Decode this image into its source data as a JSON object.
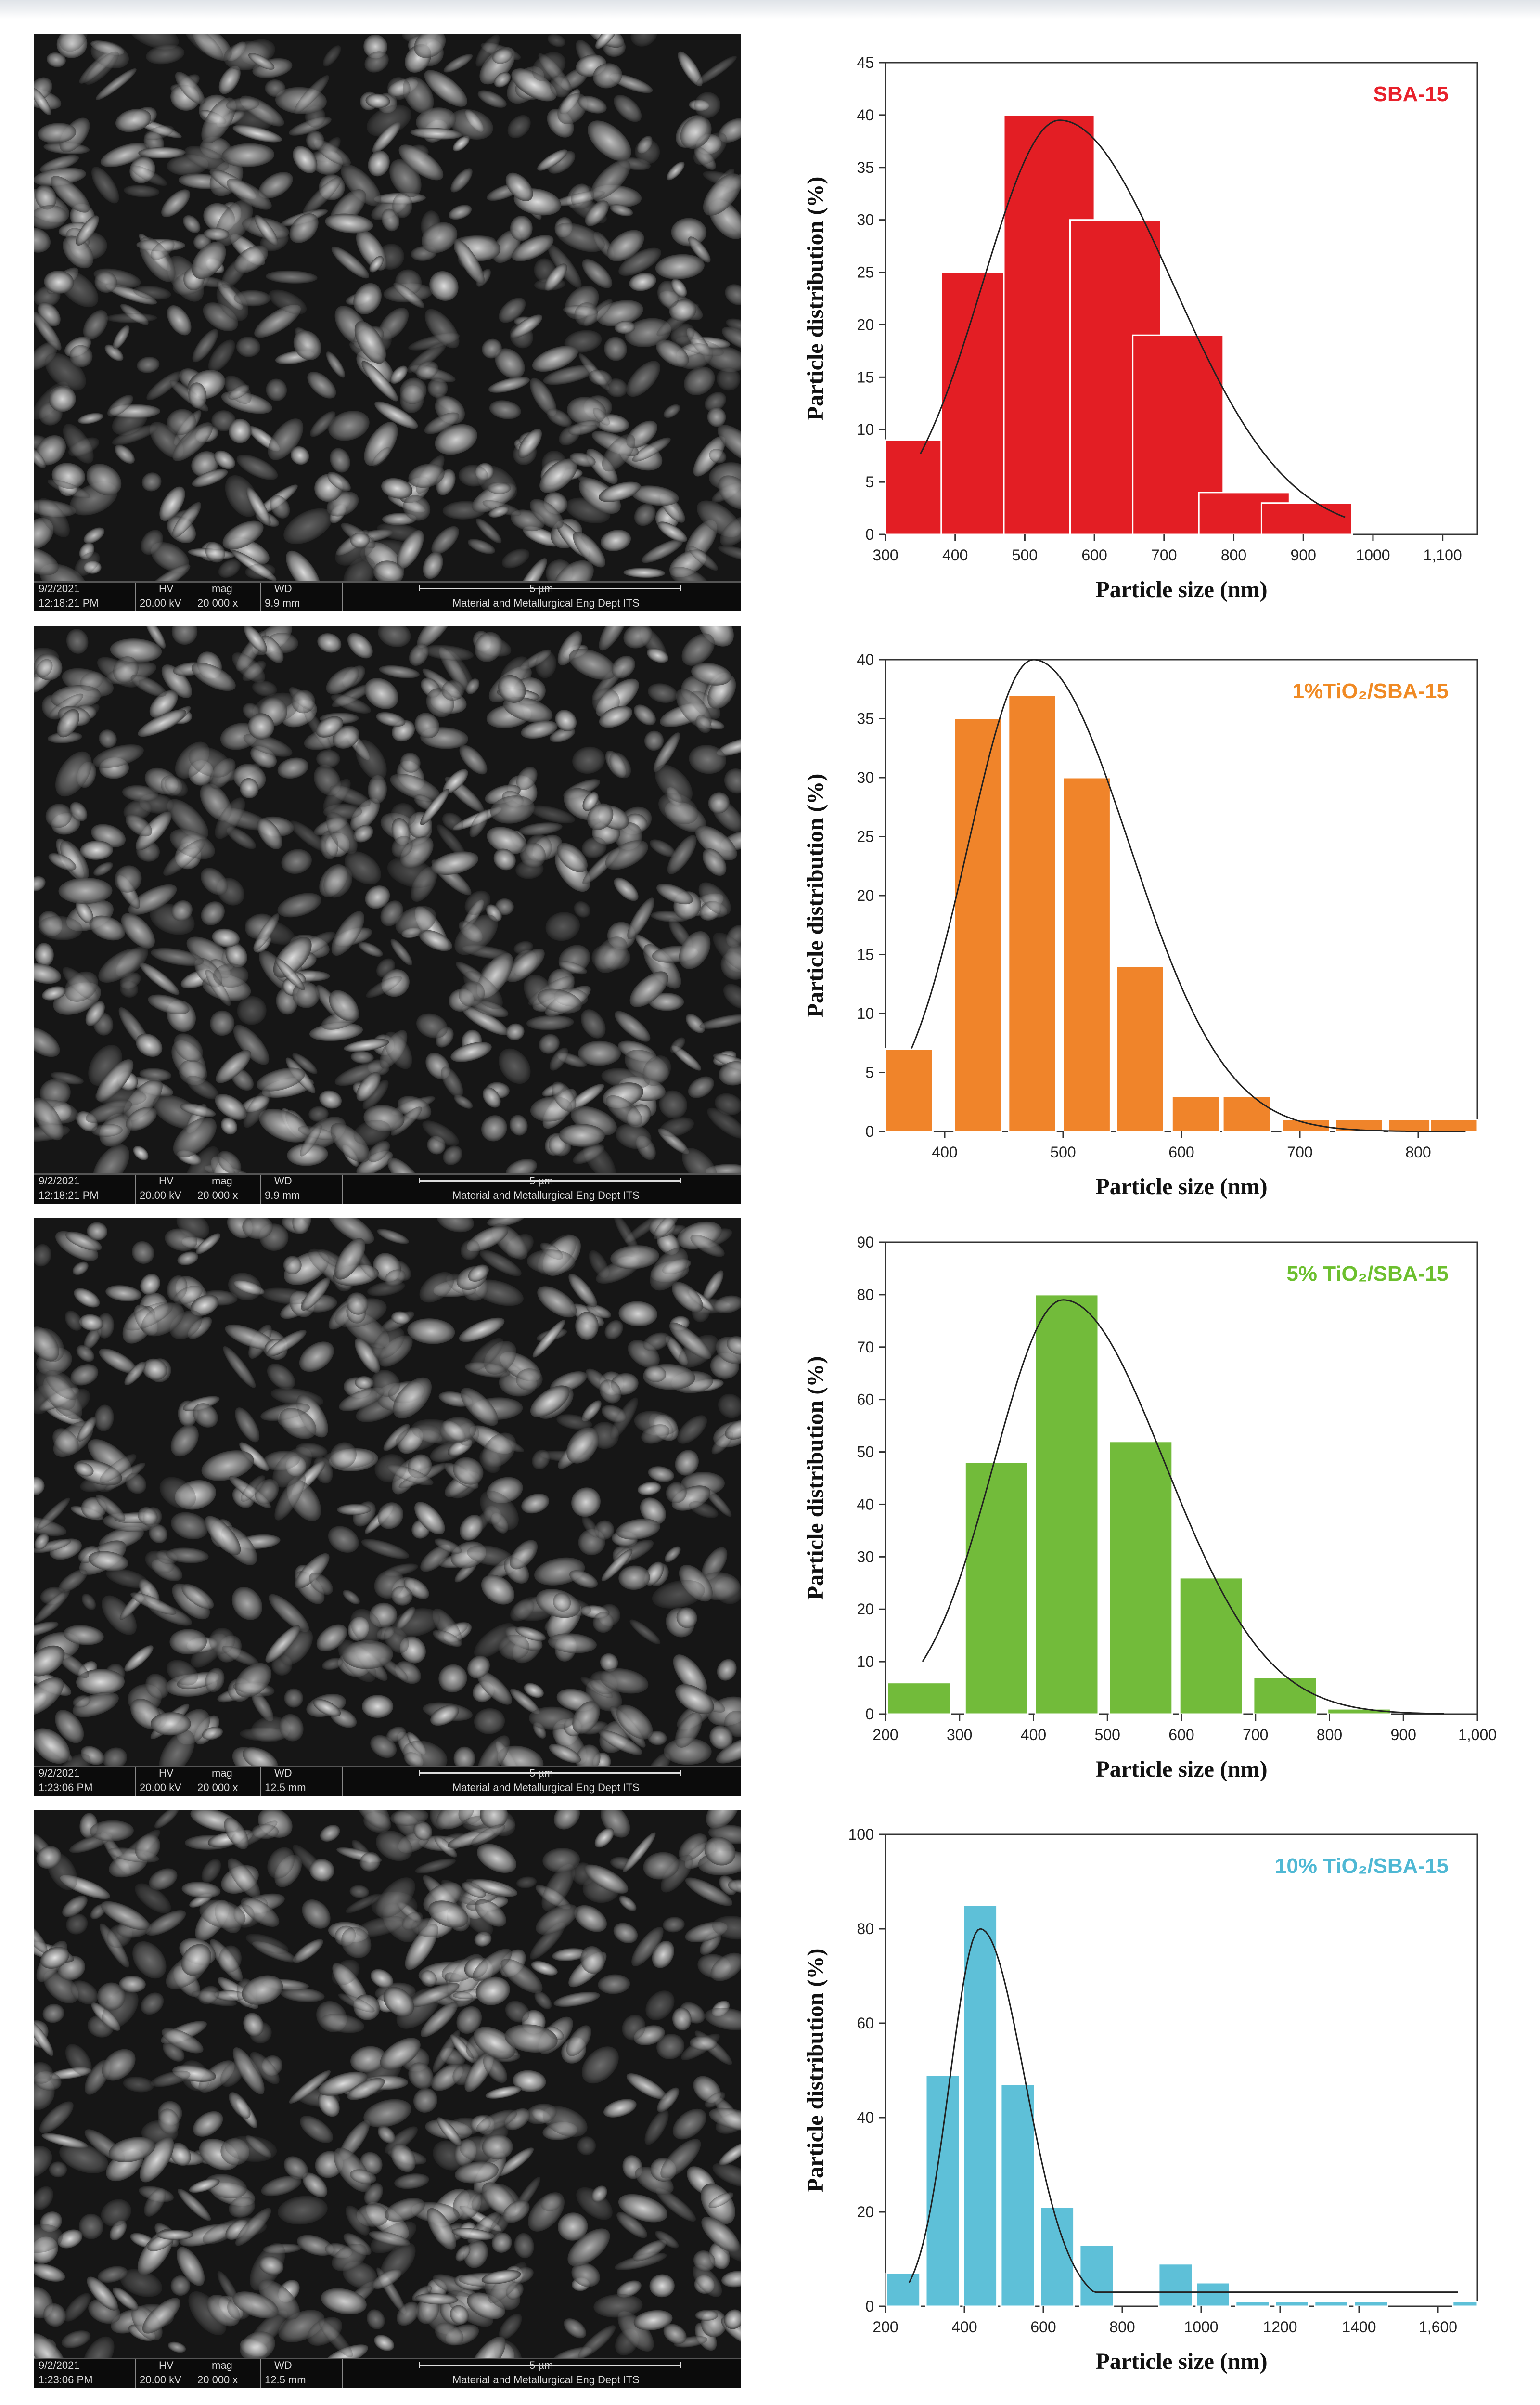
{
  "sem_panels": [
    {
      "date": "9/2/2021",
      "time": "12:18:21 PM",
      "hv_label": "HV",
      "hv": "20.00 kV",
      "mag_label": "mag",
      "mag": "20 000 x",
      "wd_label": "WD",
      "wd": "9.9 mm",
      "scale": "5 µm",
      "lab": "Material and Metallurgical Eng Dept ITS"
    },
    {
      "date": "9/2/2021",
      "time": "12:18:21 PM",
      "hv_label": "HV",
      "hv": "20.00 kV",
      "mag_label": "mag",
      "mag": "20 000 x",
      "wd_label": "WD",
      "wd": "9.9 mm",
      "scale": "5 µm",
      "lab": "Material and Metallurgical Eng Dept ITS"
    },
    {
      "date": "9/2/2021",
      "time": "1:23:06 PM",
      "hv_label": "HV",
      "hv": "20.00 kV",
      "mag_label": "mag",
      "mag": "20 000 x",
      "wd_label": "WD",
      "wd": "12.5 mm",
      "scale": "5 µm",
      "lab": "Material and Metallurgical Eng Dept ITS"
    },
    {
      "date": "9/2/2021",
      "time": "1:23:06 PM",
      "hv_label": "HV",
      "hv": "20.00 kV",
      "mag_label": "mag",
      "mag": "20 000 x",
      "wd_label": "WD",
      "wd": "12.5 mm",
      "scale": "5 µm",
      "lab": "Material and Metallurgical Eng Dept ITS"
    }
  ],
  "chart_data": [
    {
      "type": "bar",
      "title": "SBA-15",
      "title_color": "#e8212b",
      "bar_color": "#e31e24",
      "xlabel": "Particle size (nm)",
      "ylabel": "Particle distribution (%)",
      "xlim": [
        300,
        1150
      ],
      "ylim": [
        0,
        45
      ],
      "xticks": [
        300,
        400,
        500,
        600,
        700,
        800,
        900,
        1000,
        1100
      ],
      "xtick_labels": [
        "300",
        "400",
        "500",
        "600",
        "700",
        "800",
        "900",
        "1000",
        "1,100"
      ],
      "yticks": [
        0,
        5,
        10,
        15,
        20,
        25,
        30,
        35,
        40,
        45
      ],
      "bin_width": 130,
      "bars": [
        {
          "x": 350,
          "y": 9
        },
        {
          "x": 445,
          "y": 25
        },
        {
          "x": 535,
          "y": 40
        },
        {
          "x": 630,
          "y": 30
        },
        {
          "x": 720,
          "y": 19
        },
        {
          "x": 815,
          "y": 4
        },
        {
          "x": 905,
          "y": 3
        }
      ],
      "fit": {
        "mu": 550,
        "sigma": 130,
        "amp": 39.5,
        "from": 350,
        "to": 960
      }
    },
    {
      "type": "bar",
      "title": "1%TiO₂/SBA-15",
      "title_color": "#f08a24",
      "bar_color": "#f0842a",
      "xlabel": "Particle size (nm)",
      "ylabel": "Particle distribution (%)",
      "xlim": [
        350,
        850
      ],
      "ylim": [
        0,
        40
      ],
      "xticks": [
        400,
        500,
        600,
        700,
        800
      ],
      "xtick_labels": [
        "400",
        "500",
        "600",
        "700",
        "800"
      ],
      "yticks": [
        0,
        5,
        10,
        15,
        20,
        25,
        30,
        35,
        40
      ],
      "bin_width": 40,
      "bars": [
        {
          "x": 370,
          "y": 7
        },
        {
          "x": 428,
          "y": 35
        },
        {
          "x": 474,
          "y": 37
        },
        {
          "x": 520,
          "y": 30
        },
        {
          "x": 565,
          "y": 14
        },
        {
          "x": 612,
          "y": 3
        },
        {
          "x": 655,
          "y": 3
        },
        {
          "x": 705,
          "y": 1
        },
        {
          "x": 750,
          "y": 1
        },
        {
          "x": 795,
          "y": 1
        },
        {
          "x": 830,
          "y": 1
        }
      ],
      "fit": {
        "mu": 475,
        "sigma": 65,
        "amp": 40,
        "from": 372,
        "to": 840
      }
    },
    {
      "type": "bar",
      "title": "5% TiO₂/SBA-15",
      "title_color": "#6cbf2e",
      "bar_color": "#72bb3a",
      "xlabel": "Particle size (nm)",
      "ylabel": "Particle distribution (%)",
      "xlim": [
        200,
        1000
      ],
      "ylim": [
        0,
        90
      ],
      "xticks": [
        200,
        300,
        400,
        500,
        600,
        700,
        800,
        900,
        1000
      ],
      "xtick_labels": [
        "200",
        "300",
        "400",
        "500",
        "600",
        "700",
        "800",
        "900",
        "1,000"
      ],
      "yticks": [
        0,
        10,
        20,
        30,
        40,
        50,
        60,
        70,
        80,
        90
      ],
      "bin_width": 85,
      "bars": [
        {
          "x": 245,
          "y": 6
        },
        {
          "x": 350,
          "y": 48
        },
        {
          "x": 445,
          "y": 80
        },
        {
          "x": 545,
          "y": 52
        },
        {
          "x": 640,
          "y": 26
        },
        {
          "x": 740,
          "y": 7
        },
        {
          "x": 840,
          "y": 1
        }
      ],
      "fit": {
        "mu": 440,
        "sigma": 110,
        "amp": 79,
        "from": 250,
        "to": 955
      }
    },
    {
      "type": "bar",
      "title": "10% TiO₂/SBA-15",
      "title_color": "#4fb8d4",
      "bar_color": "#5ec0d8",
      "xlabel": "Particle size (nm)",
      "ylabel": "Particle distribution (%)",
      "xlim": [
        200,
        1700
      ],
      "ylim": [
        0,
        100
      ],
      "xticks": [
        200,
        400,
        600,
        800,
        1000,
        1200,
        1400,
        1600
      ],
      "xtick_labels": [
        "200",
        "400",
        "600",
        "800",
        "1000",
        "1200",
        "1400",
        "1,600"
      ],
      "yticks": [
        0,
        20,
        40,
        60,
        80,
        100
      ],
      "bin_width": 85,
      "bars": [
        {
          "x": 245,
          "y": 7
        },
        {
          "x": 345,
          "y": 49
        },
        {
          "x": 440,
          "y": 85
        },
        {
          "x": 535,
          "y": 47
        },
        {
          "x": 635,
          "y": 21
        },
        {
          "x": 735,
          "y": 13
        },
        {
          "x": 935,
          "y": 9
        },
        {
          "x": 1030,
          "y": 5
        },
        {
          "x": 1130,
          "y": 1
        },
        {
          "x": 1230,
          "y": 1
        },
        {
          "x": 1330,
          "y": 1
        },
        {
          "x": 1430,
          "y": 1
        },
        {
          "x": 1680,
          "y": 1
        }
      ],
      "fit": {
        "mu": 440,
        "sigma": 90,
        "amp": 80,
        "baseline": 3,
        "from": 260,
        "to": 1650
      }
    }
  ]
}
